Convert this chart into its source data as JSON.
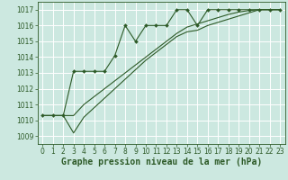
{
  "bg_color": "#cce8e0",
  "grid_color": "#ffffff",
  "line_color": "#2d5a27",
  "ylabel_values": [
    1009,
    1010,
    1011,
    1012,
    1013,
    1014,
    1015,
    1016,
    1017
  ],
  "xlabel_values": [
    0,
    1,
    2,
    3,
    4,
    5,
    6,
    7,
    8,
    9,
    10,
    11,
    12,
    13,
    14,
    15,
    16,
    17,
    18,
    19,
    20,
    21,
    22,
    23
  ],
  "xlim": [
    -0.5,
    23.5
  ],
  "ylim": [
    1008.5,
    1017.5
  ],
  "xlabel": "Graphe pression niveau de la mer (hPa)",
  "series1_x": [
    0,
    1,
    2,
    3,
    4,
    5,
    6,
    7,
    8,
    9,
    10,
    11,
    12,
    13,
    14,
    15,
    16,
    17,
    18,
    19,
    20,
    21,
    22,
    23
  ],
  "series1_y": [
    1010.3,
    1010.3,
    1010.3,
    1013.1,
    1013.1,
    1013.1,
    1013.1,
    1014.1,
    1016.0,
    1015.0,
    1016.0,
    1016.0,
    1016.0,
    1017.0,
    1017.0,
    1016.0,
    1017.0,
    1017.0,
    1017.0,
    1017.0,
    1017.0,
    1017.0,
    1017.0,
    1017.0
  ],
  "series2_x": [
    0,
    1,
    2,
    3,
    4,
    5,
    6,
    7,
    8,
    9,
    10,
    11,
    12,
    13,
    14,
    15,
    16,
    17,
    18,
    19,
    20,
    21,
    22,
    23
  ],
  "series2_y": [
    1010.3,
    1010.3,
    1010.3,
    1009.2,
    1010.2,
    1010.8,
    1011.4,
    1012.0,
    1012.6,
    1013.2,
    1013.8,
    1014.3,
    1014.8,
    1015.3,
    1015.6,
    1015.7,
    1016.0,
    1016.2,
    1016.4,
    1016.6,
    1016.8,
    1017.0,
    1017.0,
    1017.0
  ],
  "series3_x": [
    0,
    1,
    2,
    3,
    4,
    5,
    6,
    7,
    8,
    9,
    10,
    11,
    12,
    13,
    14,
    15,
    16,
    17,
    18,
    19,
    20,
    21,
    22,
    23
  ],
  "series3_y": [
    1010.3,
    1010.3,
    1010.3,
    1010.3,
    1011.0,
    1011.5,
    1012.0,
    1012.5,
    1013.0,
    1013.5,
    1014.0,
    1014.5,
    1015.0,
    1015.5,
    1015.9,
    1016.1,
    1016.3,
    1016.5,
    1016.7,
    1016.85,
    1016.95,
    1017.0,
    1017.0,
    1017.0
  ],
  "tick_fontsize": 5.5,
  "xlabel_fontsize": 7.0,
  "figwidth": 3.2,
  "figheight": 2.0,
  "dpi": 100
}
